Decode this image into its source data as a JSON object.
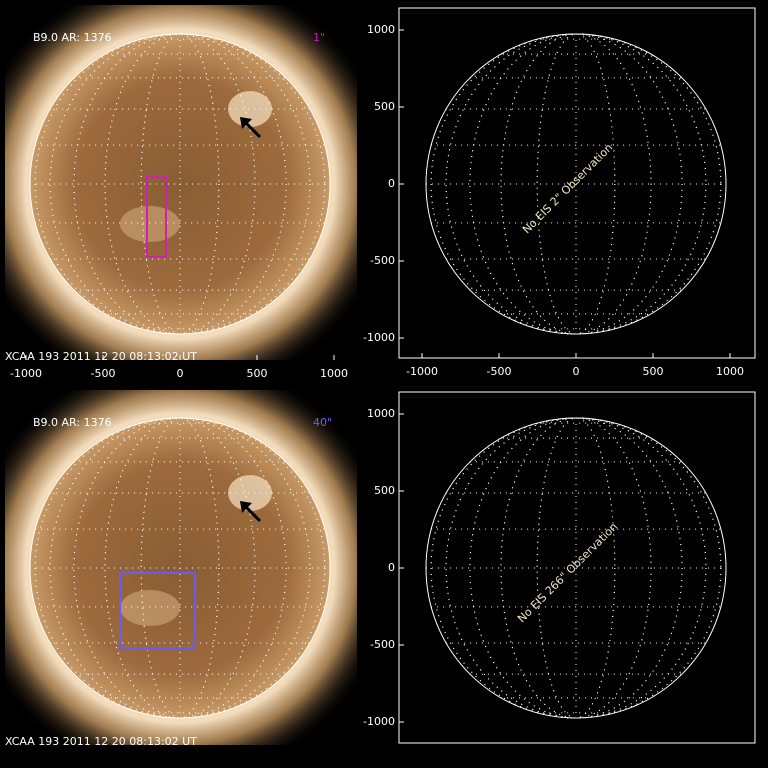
{
  "panels": [
    {
      "label": "B9.0 AR: 1376",
      "slit": "1\"",
      "footer": "XCAA 193   2011 12 20 08:13:02 UT",
      "x_ticks": [
        -1000,
        -500,
        0,
        500,
        1000
      ]
    },
    {
      "message": "No EIS 2\" Observation",
      "x_ticks": [
        -1000,
        -500,
        0,
        500,
        1000
      ],
      "y_ticks": [
        1000,
        500,
        0,
        -500,
        -1000
      ]
    },
    {
      "label": "B9.0 AR: 1376",
      "slit": "40\"",
      "footer": "XCAA 193   2011 12 20 08:13:02 UT"
    },
    {
      "message": "No EIS 266\" Observation",
      "y_ticks": [
        1000,
        500,
        0,
        -500,
        -1000
      ]
    }
  ]
}
